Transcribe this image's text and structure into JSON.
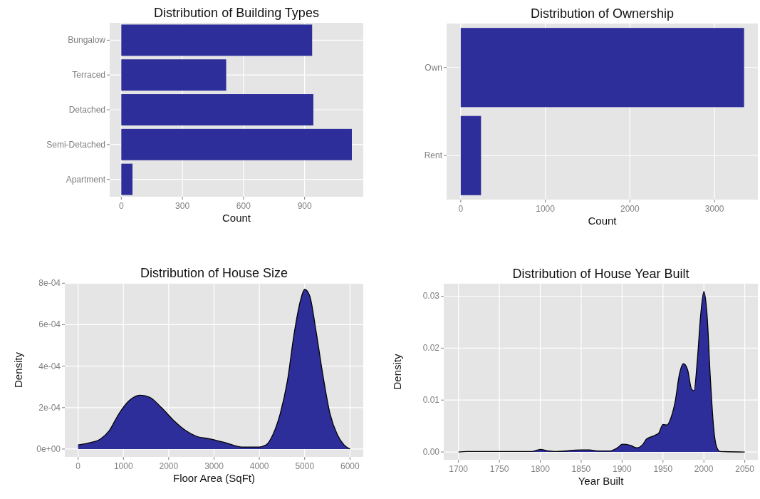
{
  "chart_data": [
    {
      "type": "bar",
      "orientation": "horizontal",
      "title": "Distribution of Building Types",
      "xlabel": "Count",
      "categories": [
        "Bungalow",
        "Terraced",
        "Detached",
        "Semi-Detached",
        "Apartment"
      ],
      "values": [
        937,
        515,
        943,
        1132,
        55
      ],
      "color": "#2e2e9a",
      "xlim": [
        -57,
        1188
      ],
      "xticks": [
        0,
        300,
        600,
        900
      ],
      "grid": true
    },
    {
      "type": "bar",
      "orientation": "horizontal",
      "title": "Distribution of Ownership",
      "xlabel": "Count",
      "categories": [
        "Own",
        "Rent"
      ],
      "values": [
        3350,
        240
      ],
      "color": "#2e2e9a",
      "xlim": [
        -167,
        3513
      ],
      "xticks": [
        0,
        1000,
        2000,
        3000
      ],
      "grid": true
    },
    {
      "type": "area",
      "title": "Distribution of House Size",
      "xlabel": "Floor Area (SqFt)",
      "ylabel": "Density",
      "xlim": [
        -293,
        6293
      ],
      "xticks": [
        0,
        1000,
        2000,
        3000,
        4000,
        5000,
        6000
      ],
      "ylim": [
        -3.8e-05,
        0.000801
      ],
      "yticks": [
        {
          "value": 0,
          "label": "0e+00"
        },
        {
          "value": 0.0002,
          "label": "2e-04"
        },
        {
          "value": 0.0004,
          "label": "4e-04"
        },
        {
          "value": 0.0006,
          "label": "6e-04"
        },
        {
          "value": 0.0008,
          "label": "8e-04"
        }
      ],
      "grid": true,
      "series": [
        {
          "color": "#2e2e9a",
          "x": [
            0,
            250,
            500,
            690,
            900,
            1110,
            1370,
            1580,
            1840,
            2100,
            2370,
            2630,
            2890,
            3260,
            3620,
            3990,
            4150,
            4300,
            4460,
            4620,
            4770,
            4900,
            5000,
            5110,
            5250,
            5400,
            5560,
            5720,
            5870,
            6000
          ],
          "values": [
            2e-05,
            3e-05,
            5e-05,
            9e-05,
            0.00017,
            0.00023,
            0.00026,
            0.00025,
            0.0002,
            0.00014,
            9e-05,
            6e-05,
            5e-05,
            3e-05,
            1e-05,
            1e-05,
            2e-05,
            7e-05,
            0.00017,
            0.00033,
            0.00056,
            0.00071,
            0.00077,
            0.00074,
            0.00057,
            0.00036,
            0.00017,
            7e-05,
            2e-05,
            0
          ]
        }
      ]
    },
    {
      "type": "area",
      "title": "Distribution of House Year Built",
      "xlabel": "Year Built",
      "ylabel": "Density",
      "xlim": [
        1682,
        2066
      ],
      "xticks": [
        1700,
        1750,
        1800,
        1850,
        1900,
        1950,
        2000,
        2050
      ],
      "ylim": [
        -0.0015,
        0.0324
      ],
      "yticks": [
        {
          "value": 0,
          "label": "0.00"
        },
        {
          "value": 0.01,
          "label": "0.01"
        },
        {
          "value": 0.02,
          "label": "0.02"
        },
        {
          "value": 0.03,
          "label": "0.03"
        }
      ],
      "grid": true,
      "series": [
        {
          "color": "#2e2e9a",
          "x": [
            1700,
            1710,
            1790,
            1800,
            1810,
            1820,
            1850,
            1860,
            1870,
            1885,
            1895,
            1900,
            1910,
            1918,
            1925,
            1930,
            1940,
            1945,
            1950,
            1955,
            1960,
            1965,
            1970,
            1975,
            1980,
            1985,
            1988,
            1992,
            1996,
            2000,
            2004,
            2008,
            2012,
            2016,
            2020,
            2050
          ],
          "values": [
            0,
            0.0001,
            0.0001,
            0.0005,
            0.0002,
            0.0001,
            0.0004,
            0.0004,
            0.0002,
            0.0002,
            0.0009,
            0.0015,
            0.0013,
            0.0008,
            0.0014,
            0.0025,
            0.0032,
            0.0037,
            0.0053,
            0.0052,
            0.0067,
            0.0098,
            0.0149,
            0.017,
            0.0159,
            0.0121,
            0.0118,
            0.0177,
            0.0262,
            0.0309,
            0.0262,
            0.014,
            0.0046,
            0.0008,
            0.0001,
            0
          ]
        }
      ]
    }
  ]
}
